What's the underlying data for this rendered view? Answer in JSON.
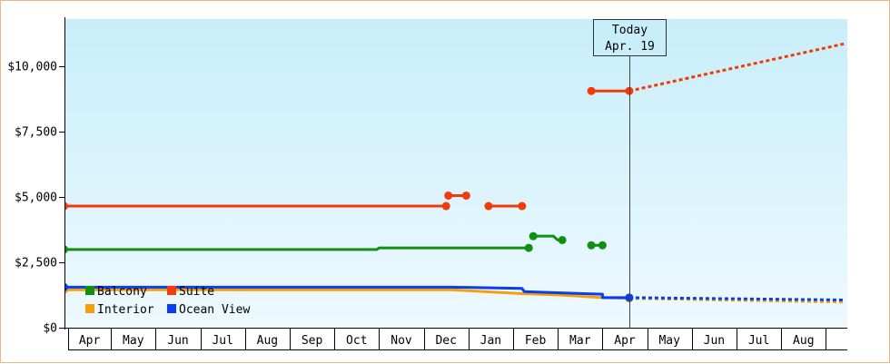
{
  "chart_data": {
    "type": "line",
    "title": "",
    "xlabel": "",
    "ylabel": "",
    "ylim": [
      0,
      11800
    ],
    "y_ticks": [
      "$0",
      "$2,500",
      "$5,000",
      "$7,500",
      "$10,000"
    ],
    "y_tick_values": [
      0,
      2500,
      5000,
      7500,
      10000
    ],
    "x_months": [
      "Apr",
      "May",
      "Jun",
      "Jul",
      "Aug",
      "Sep",
      "Oct",
      "Nov",
      "Dec",
      "Jan",
      "Feb",
      "Mar",
      "Apr",
      "May",
      "Jun",
      "Jul",
      "Aug"
    ],
    "grid": false,
    "legend_position": "bottom-left",
    "background_gradient": [
      "#c8eefa",
      "#eef9ff"
    ],
    "today": {
      "label": "Today",
      "date": "Apr. 19",
      "x": 12.6
    },
    "series": [
      {
        "name": "Balcony",
        "color": "#109010",
        "segments": [
          [
            [
              -0.05,
              2990
            ],
            [
              4.25,
              2990
            ],
            [
              6.95,
              2990
            ],
            [
              7.0,
              3050
            ],
            [
              10.35,
              3050
            ]
          ],
          [
            [
              10.45,
              3500
            ],
            [
              10.9,
              3500
            ],
            [
              11.0,
              3350
            ],
            [
              11.1,
              3350
            ]
          ],
          [
            [
              11.75,
              3150
            ],
            [
              12.0,
              3150
            ]
          ]
        ],
        "projection": []
      },
      {
        "name": "Suite",
        "color": "#f03c0a",
        "segments": [
          [
            [
              -0.05,
              4650
            ],
            [
              4.25,
              4650
            ],
            [
              8.5,
              4650
            ]
          ],
          [
            [
              8.55,
              5050
            ],
            [
              8.95,
              5050
            ]
          ],
          [
            [
              9.45,
              4650
            ],
            [
              10.2,
              4650
            ]
          ],
          [
            [
              11.75,
              9050
            ],
            [
              12.6,
              9050
            ]
          ]
        ],
        "projection": [
          [
            12.6,
            9050
          ],
          [
            17.4,
            10850
          ]
        ]
      },
      {
        "name": "Interior",
        "color": "#f5a00a",
        "segments": [
          [
            [
              -0.05,
              1450
            ],
            [
              4.25,
              1450
            ],
            [
              8.6,
              1450
            ],
            [
              10.2,
              1300
            ],
            [
              11.05,
              1250
            ],
            [
              12.0,
              1150
            ],
            [
              12.6,
              1120
            ]
          ]
        ],
        "projection": [
          [
            12.6,
            1120
          ],
          [
            17.4,
            980
          ]
        ]
      },
      {
        "name": "Ocean View",
        "color": "#0a3cf0",
        "segments": [
          [
            [
              -0.05,
              1550
            ],
            [
              4.25,
              1550
            ],
            [
              8.6,
              1550
            ],
            [
              10.2,
              1500
            ],
            [
              10.25,
              1380
            ],
            [
              11.05,
              1330
            ],
            [
              12.0,
              1280
            ],
            [
              12.0,
              1150
            ],
            [
              12.6,
              1150
            ]
          ]
        ],
        "projection": [
          [
            12.6,
            1150
          ],
          [
            17.4,
            1060
          ]
        ]
      }
    ]
  }
}
